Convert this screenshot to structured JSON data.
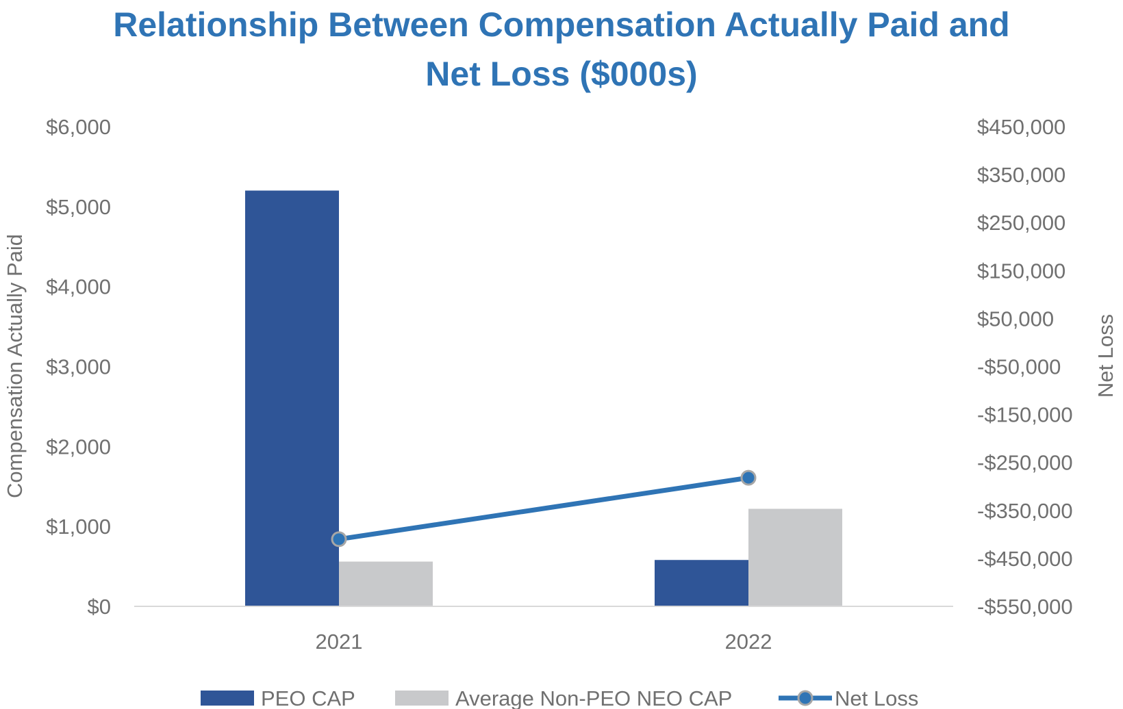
{
  "chart_data": {
    "type": "bar",
    "title": "Relationship Between Compensation Actually Paid and Net Loss ($000s)",
    "title_lines": [
      "Relationship Between Compensation Actually Paid and",
      "Net Loss ($000s)"
    ],
    "categories": [
      "2021",
      "2022"
    ],
    "ylabel": "Compensation Actually Paid",
    "y2label": "Net Loss",
    "ylim": [
      0,
      6000
    ],
    "y2lim": [
      -550000,
      450000
    ],
    "y_ticks": [
      {
        "value": 0,
        "label": "$0"
      },
      {
        "value": 1000,
        "label": "$1,000"
      },
      {
        "value": 2000,
        "label": "$2,000"
      },
      {
        "value": 3000,
        "label": "$3,000"
      },
      {
        "value": 4000,
        "label": "$4,000"
      },
      {
        "value": 5000,
        "label": "$5,000"
      },
      {
        "value": 6000,
        "label": "$6,000"
      }
    ],
    "y2_ticks": [
      {
        "value": -550000,
        "label": "-$550,000"
      },
      {
        "value": -450000,
        "label": "-$450,000"
      },
      {
        "value": -350000,
        "label": "-$350,000"
      },
      {
        "value": -250000,
        "label": "-$250,000"
      },
      {
        "value": -150000,
        "label": "-$150,000"
      },
      {
        "value": -50000,
        "label": "-$50,000"
      },
      {
        "value": 50000,
        "label": "$50,000"
      },
      {
        "value": 150000,
        "label": "$150,000"
      },
      {
        "value": 250000,
        "label": "$250,000"
      },
      {
        "value": 350000,
        "label": "$350,000"
      },
      {
        "value": 450000,
        "label": "$450,000"
      }
    ],
    "series": [
      {
        "name": "PEO CAP",
        "kind": "bar",
        "axis": "left",
        "color": "#2f5597",
        "values": [
          5200,
          580
        ]
      },
      {
        "name": "Average Non-PEO NEO CAP",
        "kind": "bar",
        "axis": "left",
        "color": "#c8c9cb",
        "values": [
          560,
          1220
        ]
      },
      {
        "name": "Net Loss",
        "kind": "line",
        "axis": "right",
        "color": "#2f74b5",
        "values": [
          -410000,
          -282000
        ]
      }
    ],
    "grid": false,
    "legend_position": "bottom"
  }
}
